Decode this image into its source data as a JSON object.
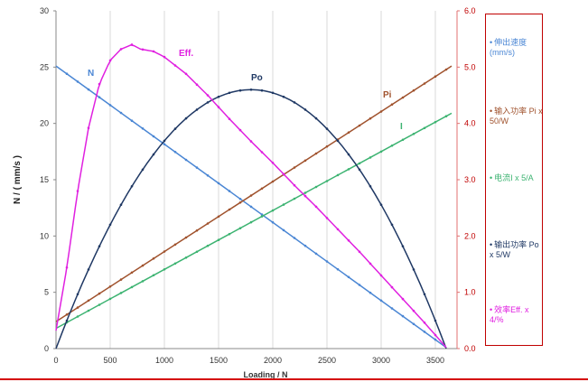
{
  "chart_data": {
    "type": "line",
    "xlabel": "Loading  / N",
    "ylabel": "N / ( mm/s )",
    "xlim": [
      0,
      3700
    ],
    "ylim_left": [
      0,
      30
    ],
    "ylim_right": [
      0,
      6.0
    ],
    "x_ticks": [
      "0",
      "500",
      "1000",
      "1500",
      "2000",
      "2500",
      "3000",
      "3500"
    ],
    "y_ticks_left": [
      "0",
      "5",
      "10",
      "15",
      "20",
      "25",
      "30"
    ],
    "y_ticks_right": [
      "0.0",
      "1.0",
      "2.0",
      "3.0",
      "4.0",
      "5.0",
      "6.0"
    ],
    "grid": "vertical",
    "series": [
      {
        "name": "N",
        "label": "N",
        "axis": "left",
        "color": "#4a86d4",
        "x": [
          0,
          3600
        ],
        "y": [
          25.1,
          0.1
        ]
      },
      {
        "name": "Pi",
        "label": "Pi",
        "axis": "left",
        "color": "#a0522d",
        "x": [
          0,
          3650
        ],
        "y": [
          2.4,
          25.1
        ]
      },
      {
        "name": "I",
        "label": "I",
        "axis": "left",
        "color": "#3cb371",
        "x": [
          0,
          3650
        ],
        "y": [
          1.8,
          20.9
        ]
      },
      {
        "name": "Po",
        "label": "Po",
        "axis": "left",
        "color": "#1f3864",
        "x": [
          0,
          1800,
          3600
        ],
        "y": [
          0,
          23,
          0
        ]
      },
      {
        "name": "Eff.",
        "label": "Eff.",
        "axis": "left",
        "color": "#e020e0",
        "x": [
          0,
          100,
          200,
          300,
          400,
          500,
          600,
          700,
          780,
          900,
          1000,
          1200,
          1400,
          1600,
          1800,
          2000,
          2200,
          2400,
          2600,
          2800,
          3000,
          3200,
          3400,
          3500,
          3600
        ],
        "y": [
          1.6,
          7.2,
          14.0,
          19.6,
          23.5,
          25.6,
          26.6,
          27.0,
          26.6,
          26.4,
          25.9,
          24.4,
          22.5,
          20.4,
          18.4,
          16.5,
          14.5,
          12.6,
          10.6,
          8.6,
          6.5,
          4.4,
          2.3,
          1.2,
          0.1
        ]
      }
    ]
  },
  "legend": {
    "items": [
      {
        "label": "伸出速度 (mm/s)",
        "color": "#4a86d4"
      },
      {
        "label": "输入功率 Pi x 50/W",
        "color": "#a0522d"
      },
      {
        "label": "电流I x 5/A",
        "color": "#3cb371"
      },
      {
        "label": "输出功率 Po x 5/W",
        "color": "#1f3864"
      },
      {
        "label": "效率Eff. x 4/%",
        "color": "#e020e0"
      }
    ]
  }
}
